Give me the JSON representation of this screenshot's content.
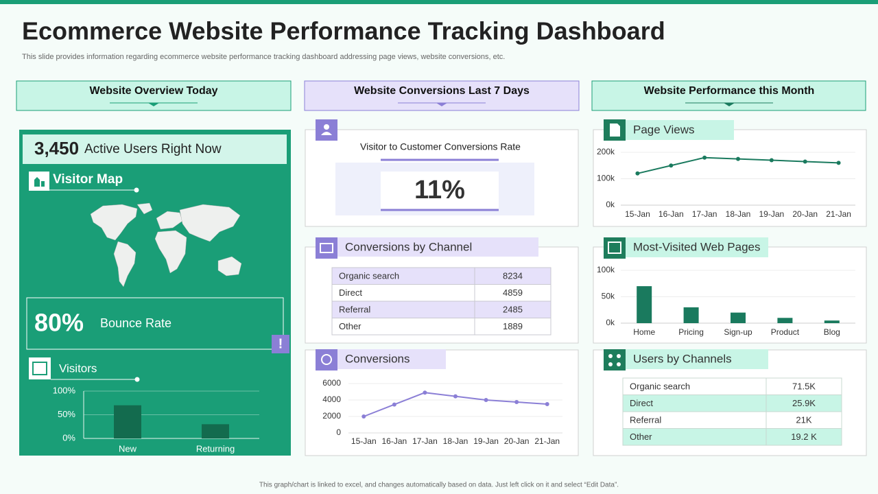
{
  "header": {
    "title": "Ecommerce Website Performance Tracking Dashboard",
    "subtitle": "This slide provides information regarding ecommerce website performance tracking dashboard addressing page views, website conversions, etc."
  },
  "sections": [
    "Website Overview Today",
    "Website Conversions Last 7 Days",
    "Website Performance this Month"
  ],
  "overview": {
    "active_users": "3,450",
    "active_users_label": "Active Users Right Now",
    "map_title": "Visitor Map",
    "bounce_rate": "80%",
    "bounce_label": "Bounce Rate",
    "alert": "!",
    "visitors_title": "Visitors"
  },
  "conversion_rate": {
    "title": "Visitor to Customer Conversions Rate",
    "value": "11%"
  },
  "channel_table": {
    "title": "Conversions by Channel",
    "rows": [
      [
        "Organic search",
        8234
      ],
      [
        "Direct",
        4859
      ],
      [
        "Referral",
        2485
      ],
      [
        "Other",
        1889
      ]
    ]
  },
  "users_table": {
    "title": "Users by Channels",
    "rows": [
      [
        "Organic search",
        "71.5K"
      ],
      [
        "Direct",
        "25.9K"
      ],
      [
        "Referral",
        "21K"
      ],
      [
        "Other",
        "19.2 K"
      ]
    ]
  },
  "chart_data": [
    {
      "type": "bar",
      "categories": [
        "New",
        "Returning"
      ],
      "values": [
        70,
        30
      ],
      "color": "#136b4e",
      "ylim": [
        0,
        100
      ],
      "yticks": [
        {
          "value": 0,
          "label": "0%"
        },
        {
          "value": 50,
          "label": "50%"
        },
        {
          "value": 100,
          "label": "100%"
        }
      ],
      "grid": true
    },
    {
      "type": "line",
      "title": "Conversions",
      "categories": [
        "15-Jan",
        "16-Jan",
        "17-Jan",
        "18-Jan",
        "19-Jan",
        "20-Jan",
        "21-Jan"
      ],
      "values": [
        2000,
        3450,
        4900,
        4450,
        4000,
        3750,
        3500
      ],
      "color": "#8b7fd6",
      "ylim": [
        0,
        6000
      ],
      "yticks": [
        0,
        2000,
        4000,
        6000
      ],
      "grid": true
    },
    {
      "type": "line",
      "title": "Page Views",
      "categories": [
        "15-Jan",
        "16-Jan",
        "17-Jan",
        "18-Jan",
        "19-Jan",
        "20-Jan",
        "21-Jan"
      ],
      "values": [
        120000,
        150000,
        180000,
        175000,
        170000,
        165000,
        160000
      ],
      "color": "#1a7a5e",
      "ylim": [
        0,
        200000
      ],
      "yticks": [
        {
          "value": 0,
          "label": "0k"
        },
        {
          "value": 100000,
          "label": "100k"
        },
        {
          "value": 200000,
          "label": "200k"
        }
      ],
      "grid": true
    },
    {
      "type": "bar",
      "title": "Most-Visited Web Pages",
      "categories": [
        "Home",
        "Pricing",
        "Sign-up",
        "Product",
        "Blog"
      ],
      "values": [
        70000,
        30000,
        20000,
        10000,
        5000
      ],
      "color": "#1a7a5e",
      "ylim": [
        0,
        100000
      ],
      "yticks": [
        {
          "value": 0,
          "label": "0k"
        },
        {
          "value": 50000,
          "label": "50k"
        },
        {
          "value": 100000,
          "label": "100k"
        }
      ],
      "grid": true
    }
  ],
  "footer": "This graph/chart is linked to excel, and changes automatically based on data. Just left click on it and select “Edit Data”."
}
